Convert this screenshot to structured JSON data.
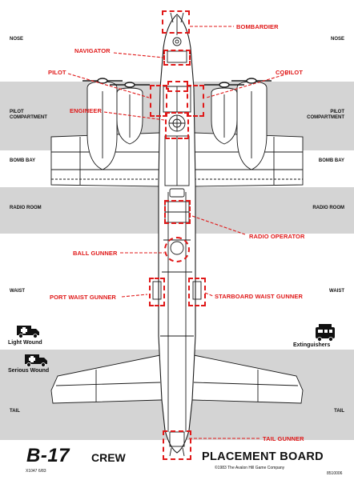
{
  "game": {
    "title": "B-17",
    "subtitle_left": "CREW",
    "subtitle_right": "PLACEMENT BOARD",
    "copyright": "©1983 The Avalon Hill Game Company",
    "part_code": "X1047 6/83",
    "catalog_code": "8510006"
  },
  "zones": {
    "nose": "NOSE",
    "pilot_compartment": "PILOT\nCOMPARTMENT",
    "bomb_bay": "BOMB BAY",
    "radio_room": "RADIO ROOM",
    "waist": "WAIST",
    "tail": "TAIL"
  },
  "crew_positions": {
    "bombardier": "BOMBARDIER",
    "navigator": "NAVIGATOR",
    "pilot": "PILOT",
    "copilot": "COPILOT",
    "engineer": "ENGINEER",
    "radio_operator": "RADIO OPERATOR",
    "ball_gunner": "BALL GUNNER",
    "port_waist_gunner": "PORT WAIST GUNNER",
    "starboard_waist_gunner": "STARBOARD WAIST GUNNER",
    "tail_gunner": "TAIL GUNNER"
  },
  "markers": {
    "light_wound": "Light Wound",
    "serious_wound": "Serious Wound",
    "extinguishers": "Extinguishers"
  },
  "colors": {
    "band_gray": "#d4d4d4",
    "accent_red": "#e01818",
    "ink": "#111111"
  }
}
